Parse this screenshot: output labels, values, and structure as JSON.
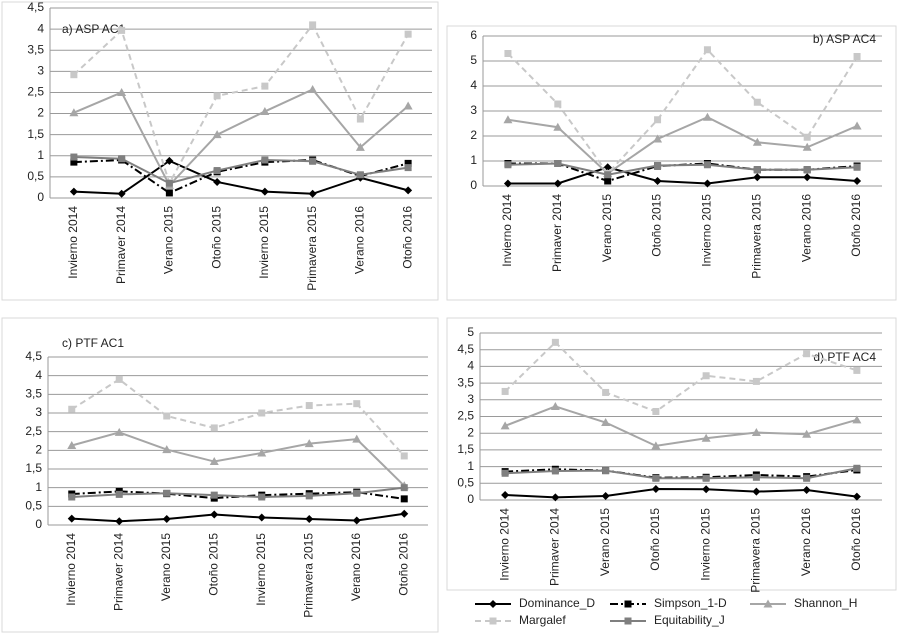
{
  "chart_data": [
    {
      "type": "line",
      "title": "a) ASP AC1",
      "categories": [
        "Invierno 2014",
        "Primaver 2014",
        "Verano 2015",
        "Otoño 2015",
        "Invierno 2015",
        "Primavera 2015",
        "Verano 2016",
        "Otoño 2016"
      ],
      "ylim": [
        0,
        4.5
      ],
      "yticks": [
        0,
        {
          "value": 0.5,
          "label": "0,5"
        },
        1,
        {
          "value": 1.5,
          "label": "1,5"
        },
        2,
        {
          "value": 2.5,
          "label": "2,5"
        },
        3,
        {
          "value": 3.5,
          "label": "3,5"
        },
        4,
        {
          "value": 4.5,
          "label": "4,5"
        }
      ],
      "grid": true,
      "series": [
        {
          "name": "Dominance_D",
          "color": "#000000",
          "dash": "solid",
          "marker": "diamond",
          "values": [
            0.15,
            0.1,
            0.88,
            0.38,
            0.15,
            0.1,
            0.48,
            0.18
          ]
        },
        {
          "name": "Simpson_1-D",
          "color": "#000000",
          "dash": "dashdot",
          "marker": "square",
          "values": [
            0.85,
            0.9,
            0.12,
            0.62,
            0.85,
            0.9,
            0.52,
            0.82
          ]
        },
        {
          "name": "Shannon_H",
          "color": "#a6a6a6",
          "dash": "solid",
          "marker": "triangle",
          "values": [
            2.02,
            2.5,
            0.3,
            1.5,
            2.05,
            2.57,
            1.2,
            2.18
          ]
        },
        {
          "name": "Margalef",
          "color": "#c8c8c8",
          "dash": "dash",
          "marker": "square",
          "values": [
            2.92,
            3.97,
            0.35,
            2.42,
            2.65,
            4.1,
            1.87,
            3.88
          ]
        },
        {
          "name": "Equitability_J",
          "color": "#7f7f7f",
          "dash": "solid",
          "marker": "square",
          "values": [
            0.97,
            0.93,
            0.35,
            0.65,
            0.9,
            0.87,
            0.55,
            0.72
          ]
        }
      ]
    },
    {
      "type": "line",
      "title": "b) ASP AC4",
      "categories": [
        "Invierno 2014",
        "Primaver 2014",
        "Verano 2015",
        "Otoño 2015",
        "Invierno 2015",
        "Primavera 2015",
        "Verano 2016",
        "Otoño 2016"
      ],
      "ylim": [
        0,
        6
      ],
      "yticks": [
        0,
        1,
        2,
        3,
        4,
        5,
        6
      ],
      "grid": true,
      "series": [
        {
          "name": "Dominance_D",
          "color": "#000000",
          "dash": "solid",
          "marker": "diamond",
          "values": [
            0.1,
            0.1,
            0.75,
            0.2,
            0.1,
            0.35,
            0.35,
            0.2
          ]
        },
        {
          "name": "Simpson_1-D",
          "color": "#000000",
          "dash": "dashdot",
          "marker": "square",
          "values": [
            0.9,
            0.9,
            0.2,
            0.8,
            0.9,
            0.65,
            0.65,
            0.8
          ]
        },
        {
          "name": "Shannon_H",
          "color": "#a6a6a6",
          "dash": "solid",
          "marker": "triangle",
          "values": [
            2.65,
            2.35,
            0.5,
            1.88,
            2.75,
            1.75,
            1.55,
            2.4
          ]
        },
        {
          "name": "Margalef",
          "color": "#c8c8c8",
          "dash": "dash",
          "marker": "square",
          "values": [
            5.3,
            3.28,
            0.5,
            2.65,
            5.45,
            3.35,
            1.95,
            5.18
          ]
        },
        {
          "name": "Equitability_J",
          "color": "#7f7f7f",
          "dash": "solid",
          "marker": "square",
          "values": [
            0.85,
            0.9,
            0.45,
            0.82,
            0.85,
            0.65,
            0.65,
            0.75
          ]
        }
      ]
    },
    {
      "type": "line",
      "title": "c) PTF AC1",
      "categories": [
        "Invierno 2014",
        "Primaver 2014",
        "Verano 2015",
        "Otoño 2015",
        "Invierno 2015",
        "Primavera 2015",
        "Verano 2016",
        "Otoño 2016"
      ],
      "ylim": [
        0,
        4.5
      ],
      "yticks": [
        0,
        {
          "value": 0.5,
          "label": "0,5"
        },
        1,
        {
          "value": 1.5,
          "label": "1,5"
        },
        2,
        {
          "value": 2.5,
          "label": "2,5"
        },
        3,
        {
          "value": 3.5,
          "label": "3,5"
        },
        4,
        {
          "value": 4.5,
          "label": "4,5"
        }
      ],
      "grid": true,
      "series": [
        {
          "name": "Dominance_D",
          "color": "#000000",
          "dash": "solid",
          "marker": "diamond",
          "values": [
            0.17,
            0.1,
            0.16,
            0.28,
            0.2,
            0.16,
            0.12,
            0.3
          ]
        },
        {
          "name": "Simpson_1-D",
          "color": "#000000",
          "dash": "dashdot",
          "marker": "square",
          "values": [
            0.83,
            0.9,
            0.84,
            0.72,
            0.8,
            0.84,
            0.88,
            0.7
          ]
        },
        {
          "name": "Shannon_H",
          "color": "#a6a6a6",
          "dash": "solid",
          "marker": "triangle",
          "values": [
            2.13,
            2.48,
            2.02,
            1.7,
            1.93,
            2.18,
            2.3,
            1.05
          ]
        },
        {
          "name": "Margalef",
          "color": "#c8c8c8",
          "dash": "dash",
          "marker": "square",
          "values": [
            3.1,
            3.9,
            2.92,
            2.6,
            3.0,
            3.2,
            3.25,
            1.85
          ]
        },
        {
          "name": "Equitability_J",
          "color": "#7f7f7f",
          "dash": "solid",
          "marker": "square",
          "values": [
            0.75,
            0.82,
            0.85,
            0.8,
            0.75,
            0.78,
            0.85,
            1.0
          ]
        }
      ]
    },
    {
      "type": "line",
      "title": "d) PTF AC4",
      "categories": [
        "Invierno 2014",
        "Primaver 2014",
        "Verano 2015",
        "Otoño 2015",
        "Invierno 2015",
        "Primavera 2015",
        "Verano 2016",
        "Otoño 2016"
      ],
      "ylim": [
        0,
        5
      ],
      "yticks": [
        0,
        {
          "value": 0.5,
          "label": "0,5"
        },
        1,
        {
          "value": 1.5,
          "label": "1,5"
        },
        2,
        {
          "value": 2.5,
          "label": "2,5"
        },
        3,
        {
          "value": 3.5,
          "label": "3,5"
        },
        4,
        {
          "value": 4.5,
          "label": "4,5"
        },
        5
      ],
      "grid": true,
      "series": [
        {
          "name": "Dominance_D",
          "color": "#000000",
          "dash": "solid",
          "marker": "diamond",
          "values": [
            0.15,
            0.08,
            0.12,
            0.33,
            0.32,
            0.25,
            0.3,
            0.1
          ]
        },
        {
          "name": "Simpson_1-D",
          "color": "#000000",
          "dash": "dashdot",
          "marker": "square",
          "values": [
            0.85,
            0.92,
            0.88,
            0.67,
            0.68,
            0.75,
            0.7,
            0.9
          ]
        },
        {
          "name": "Shannon_H",
          "color": "#a6a6a6",
          "dash": "solid",
          "marker": "triangle",
          "values": [
            2.22,
            2.8,
            2.32,
            1.62,
            1.85,
            2.02,
            1.97,
            2.4
          ]
        },
        {
          "name": "Margalef",
          "color": "#c8c8c8",
          "dash": "dash",
          "marker": "square",
          "values": [
            3.25,
            4.72,
            3.22,
            2.65,
            3.72,
            3.55,
            4.38,
            3.88
          ]
        },
        {
          "name": "Equitability_J",
          "color": "#7f7f7f",
          "dash": "solid",
          "marker": "square",
          "values": [
            0.8,
            0.87,
            0.88,
            0.65,
            0.65,
            0.68,
            0.65,
            0.95
          ]
        }
      ]
    }
  ]
}
